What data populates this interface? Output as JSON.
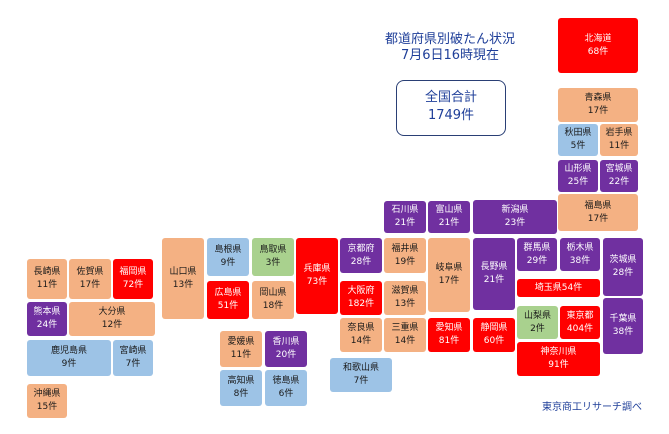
{
  "header": {
    "title_line1": "都道府県別破たん状況",
    "title_line2": "7月6日16時現在"
  },
  "total": {
    "label": "全国合計",
    "count": "1749件"
  },
  "credit": "東京商工リサーチ調べ",
  "colors": {
    "red": "#ff0000",
    "purple": "#7030a0",
    "orange": "#f4b183",
    "blue": "#9dc3e6",
    "green": "#a9d18e",
    "title_text": "#1f3f99"
  },
  "prefectures": [
    {
      "id": "hokkaido",
      "name": "北海道",
      "count": "68件",
      "color": "red"
    },
    {
      "id": "aomori",
      "name": "青森県",
      "count": "17件",
      "color": "orange"
    },
    {
      "id": "akita",
      "name": "秋田県",
      "count": "5件",
      "color": "blue"
    },
    {
      "id": "iwate",
      "name": "岩手県",
      "count": "11件",
      "color": "orange"
    },
    {
      "id": "yamagata",
      "name": "山形県",
      "count": "25件",
      "color": "purple"
    },
    {
      "id": "miyagi",
      "name": "宮城県",
      "count": "22件",
      "color": "purple"
    },
    {
      "id": "fukushima",
      "name": "福島県",
      "count": "17件",
      "color": "orange"
    },
    {
      "id": "niigata",
      "name": "新潟県",
      "count": "23件",
      "color": "purple"
    },
    {
      "id": "ishikawa",
      "name": "石川県",
      "count": "21件",
      "color": "purple"
    },
    {
      "id": "toyama",
      "name": "富山県",
      "count": "21件",
      "color": "purple"
    },
    {
      "id": "fukui",
      "name": "福井県",
      "count": "19件",
      "color": "orange"
    },
    {
      "id": "gifu",
      "name": "岐阜県",
      "count": "17件",
      "color": "orange"
    },
    {
      "id": "nagano",
      "name": "長野県",
      "count": "21件",
      "color": "purple"
    },
    {
      "id": "gunma",
      "name": "群馬県",
      "count": "29件",
      "color": "purple"
    },
    {
      "id": "tochigi",
      "name": "栃木県",
      "count": "38件",
      "color": "purple"
    },
    {
      "id": "ibaraki",
      "name": "茨城県",
      "count": "28件",
      "color": "purple"
    },
    {
      "id": "saitama",
      "name": "埼玉県",
      "count": "54件",
      "color": "red"
    },
    {
      "id": "yamanashi",
      "name": "山梨県",
      "count": "2件",
      "color": "green"
    },
    {
      "id": "tokyo",
      "name": "東京都",
      "count": "404件",
      "color": "red"
    },
    {
      "id": "chiba",
      "name": "千葉県",
      "count": "38件",
      "color": "purple"
    },
    {
      "id": "kanagawa",
      "name": "神奈川県",
      "count": "91件",
      "color": "red"
    },
    {
      "id": "shizuoka",
      "name": "静岡県",
      "count": "60件",
      "color": "red"
    },
    {
      "id": "aichi",
      "name": "愛知県",
      "count": "81件",
      "color": "red"
    },
    {
      "id": "mie",
      "name": "三重県",
      "count": "14件",
      "color": "orange"
    },
    {
      "id": "shiga",
      "name": "滋賀県",
      "count": "13件",
      "color": "orange"
    },
    {
      "id": "kyoto",
      "name": "京都府",
      "count": "28件",
      "color": "purple"
    },
    {
      "id": "osaka",
      "name": "大阪府",
      "count": "182件",
      "color": "red"
    },
    {
      "id": "nara",
      "name": "奈良県",
      "count": "14件",
      "color": "orange"
    },
    {
      "id": "wakayama",
      "name": "和歌山県",
      "count": "7件",
      "color": "blue"
    },
    {
      "id": "hyogo",
      "name": "兵庫県",
      "count": "73件",
      "color": "red"
    },
    {
      "id": "tottori",
      "name": "鳥取県",
      "count": "3件",
      "color": "green"
    },
    {
      "id": "shimane",
      "name": "島根県",
      "count": "9件",
      "color": "blue"
    },
    {
      "id": "okayama",
      "name": "岡山県",
      "count": "18件",
      "color": "orange"
    },
    {
      "id": "hiroshima",
      "name": "広島県",
      "count": "51件",
      "color": "red"
    },
    {
      "id": "yamaguchi",
      "name": "山口県",
      "count": "13件",
      "color": "orange"
    },
    {
      "id": "kagawa",
      "name": "香川県",
      "count": "20件",
      "color": "purple"
    },
    {
      "id": "ehime",
      "name": "愛媛県",
      "count": "11件",
      "color": "orange"
    },
    {
      "id": "tokushima",
      "name": "徳島県",
      "count": "6件",
      "color": "blue"
    },
    {
      "id": "kochi",
      "name": "高知県",
      "count": "8件",
      "color": "blue"
    },
    {
      "id": "fukuoka",
      "name": "福岡県",
      "count": "72件",
      "color": "red"
    },
    {
      "id": "saga",
      "name": "佐賀県",
      "count": "17件",
      "color": "orange"
    },
    {
      "id": "nagasaki",
      "name": "長崎県",
      "count": "11件",
      "color": "orange"
    },
    {
      "id": "kumamoto",
      "name": "熊本県",
      "count": "24件",
      "color": "purple"
    },
    {
      "id": "oita",
      "name": "大分県",
      "count": "12件",
      "color": "orange"
    },
    {
      "id": "miyazaki",
      "name": "宮崎県",
      "count": "7件",
      "color": "blue"
    },
    {
      "id": "kagoshima",
      "name": "鹿児島県",
      "count": "9件",
      "color": "blue"
    },
    {
      "id": "okinawa",
      "name": "沖縄県",
      "count": "15件",
      "color": "orange"
    }
  ]
}
